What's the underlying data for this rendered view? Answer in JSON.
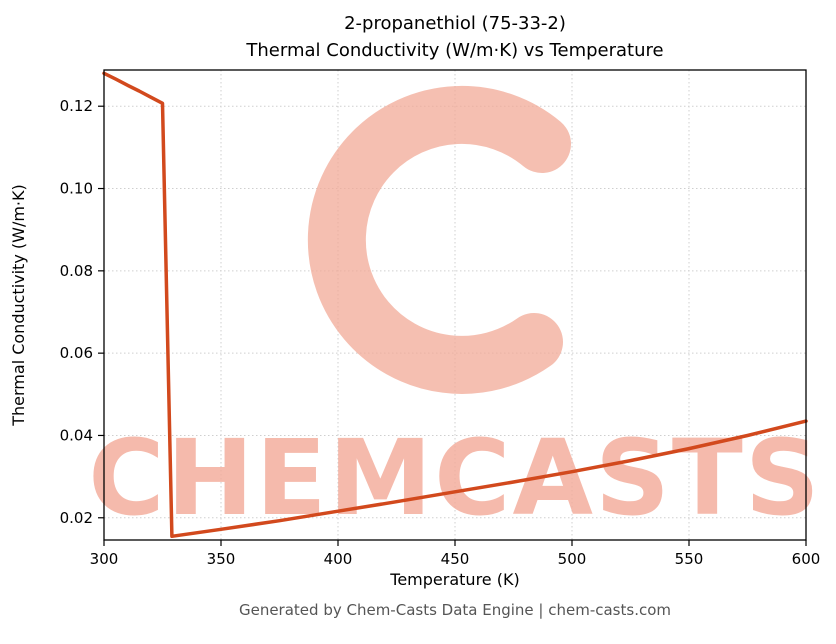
{
  "title": {
    "line1": "2-propanethiol (75-33-2)",
    "line2": "Thermal Conductivity (W/m·K) vs Temperature"
  },
  "footer": "Generated by Chem-Casts Data Engine | chem-casts.com",
  "watermark": {
    "text": "CHEMCASTS",
    "color": "#f2a997"
  },
  "chart_data": {
    "type": "line",
    "title": "2-propanethiol (75-33-2)\nThermal Conductivity (W/m·K) vs Temperature",
    "xlabel": "Temperature (K)",
    "ylabel": "Thermal Conductivity (W/m·K)",
    "xlim": [
      300,
      600
    ],
    "ylim": [
      0.0146,
      0.1288
    ],
    "xticks": [
      300,
      350,
      400,
      450,
      500,
      550,
      600
    ],
    "yticks": [
      0.02,
      0.04,
      0.06,
      0.08,
      0.1,
      0.12
    ],
    "grid": true,
    "legend": false,
    "line_color": "#d2491d",
    "series": [
      {
        "name": "thermal-conductivity",
        "points": [
          [
            300,
            0.128
          ],
          [
            305,
            0.1266
          ],
          [
            310,
            0.1251
          ],
          [
            315,
            0.1237
          ],
          [
            320,
            0.1222
          ],
          [
            325,
            0.1207
          ],
          [
            329,
            0.0155
          ],
          [
            350,
            0.0172
          ],
          [
            375,
            0.0193
          ],
          [
            400,
            0.0216
          ],
          [
            425,
            0.0239
          ],
          [
            450,
            0.0263
          ],
          [
            475,
            0.0287
          ],
          [
            500,
            0.0312
          ],
          [
            525,
            0.0339
          ],
          [
            550,
            0.0368
          ],
          [
            575,
            0.04
          ],
          [
            600,
            0.0435
          ]
        ]
      }
    ]
  }
}
